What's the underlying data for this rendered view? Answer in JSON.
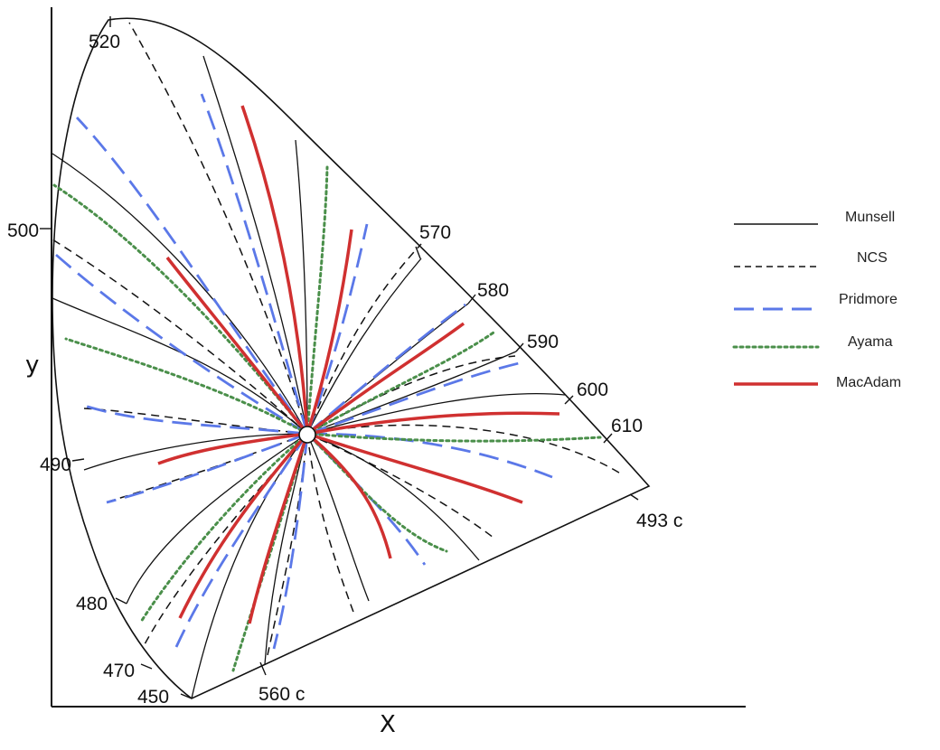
{
  "axes": {
    "x_label": "X",
    "y_label": "y"
  },
  "wavelength_labels": {
    "w520": "520",
    "w500": "500",
    "w490": "490",
    "w480": "480",
    "w470": "470",
    "w450": "450",
    "w560c": "560 c",
    "w570": "570",
    "w580": "580",
    "w590": "590",
    "w600": "600",
    "w610": "610",
    "w493c": "493 c"
  },
  "legend": [
    {
      "label": "Munsell",
      "color": "#111111",
      "style": "solid"
    },
    {
      "label": "NCS",
      "color": "#111111",
      "style": "dashed"
    },
    {
      "label": "Pridmore",
      "color": "#5b78e8",
      "style": "long-dash"
    },
    {
      "label": "Ayama",
      "color": "#4a8f4a",
      "style": "dotted"
    },
    {
      "label": "MacAdam",
      "color": "#d03030",
      "style": "solid-thick"
    }
  ],
  "colors": {
    "munsell": "#111111",
    "ncs": "#111111",
    "pridmore": "#5b78e8",
    "ayama": "#4a8f4a",
    "macadam": "#d03030",
    "locus": "#111111"
  },
  "white_point": {
    "shape": "circle",
    "fill": "#ffffff"
  }
}
